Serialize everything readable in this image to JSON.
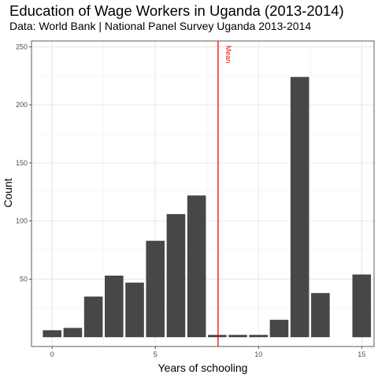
{
  "chart_data": {
    "type": "bar",
    "title": "Education of Wage Workers in Uganda (2013-2014)",
    "subtitle": "Data: World Bank | National Panel Survey Uganda 2013-2014",
    "xlabel": "Years of schooling",
    "ylabel": "Count",
    "xlim": [
      -1,
      15.6
    ],
    "ylim": [
      -8,
      255
    ],
    "x_ticks": [
      0,
      5,
      10,
      15
    ],
    "y_ticks": [
      50,
      100,
      150,
      200,
      250
    ],
    "grid": true,
    "legend": "none",
    "bar_color": "#474747",
    "x": [
      0,
      1,
      2,
      3,
      4,
      5,
      6,
      7,
      8,
      9,
      10,
      11,
      12,
      13,
      15
    ],
    "values": [
      6,
      8,
      35,
      53,
      47,
      83,
      106,
      122,
      2,
      2,
      2,
      15,
      224,
      38,
      54
    ],
    "mean_line": {
      "x": 8.04,
      "label": "Mean",
      "color": "#ff0000"
    }
  }
}
